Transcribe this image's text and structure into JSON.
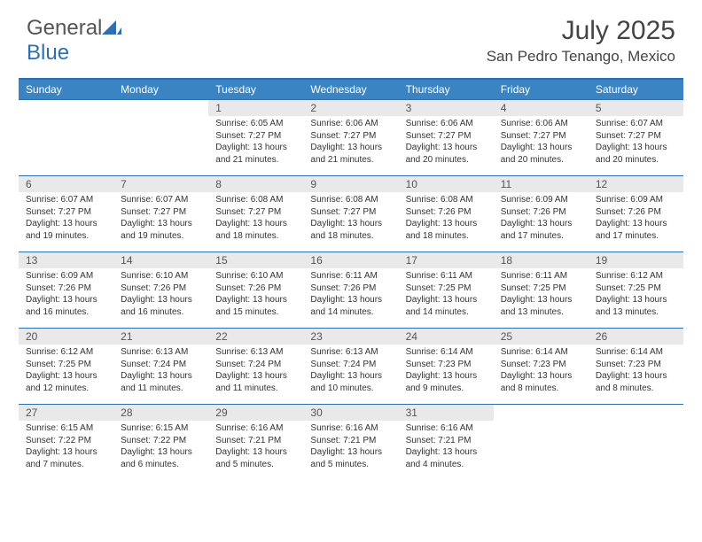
{
  "brand": {
    "part1": "General",
    "part2": "Blue"
  },
  "title": "July 2025",
  "location": "San Pedro Tenango, Mexico",
  "colors": {
    "header_bg": "#3b84c4",
    "header_border": "#2f6fb0",
    "daynum_bg": "#e9e9e9",
    "text": "#333333"
  },
  "weekdays": [
    "Sunday",
    "Monday",
    "Tuesday",
    "Wednesday",
    "Thursday",
    "Friday",
    "Saturday"
  ],
  "weeks": [
    [
      null,
      null,
      {
        "n": "1",
        "sr": "Sunrise: 6:05 AM",
        "ss": "Sunset: 7:27 PM",
        "dl": "Daylight: 13 hours and 21 minutes."
      },
      {
        "n": "2",
        "sr": "Sunrise: 6:06 AM",
        "ss": "Sunset: 7:27 PM",
        "dl": "Daylight: 13 hours and 21 minutes."
      },
      {
        "n": "3",
        "sr": "Sunrise: 6:06 AM",
        "ss": "Sunset: 7:27 PM",
        "dl": "Daylight: 13 hours and 20 minutes."
      },
      {
        "n": "4",
        "sr": "Sunrise: 6:06 AM",
        "ss": "Sunset: 7:27 PM",
        "dl": "Daylight: 13 hours and 20 minutes."
      },
      {
        "n": "5",
        "sr": "Sunrise: 6:07 AM",
        "ss": "Sunset: 7:27 PM",
        "dl": "Daylight: 13 hours and 20 minutes."
      }
    ],
    [
      {
        "n": "6",
        "sr": "Sunrise: 6:07 AM",
        "ss": "Sunset: 7:27 PM",
        "dl": "Daylight: 13 hours and 19 minutes."
      },
      {
        "n": "7",
        "sr": "Sunrise: 6:07 AM",
        "ss": "Sunset: 7:27 PM",
        "dl": "Daylight: 13 hours and 19 minutes."
      },
      {
        "n": "8",
        "sr": "Sunrise: 6:08 AM",
        "ss": "Sunset: 7:27 PM",
        "dl": "Daylight: 13 hours and 18 minutes."
      },
      {
        "n": "9",
        "sr": "Sunrise: 6:08 AM",
        "ss": "Sunset: 7:27 PM",
        "dl": "Daylight: 13 hours and 18 minutes."
      },
      {
        "n": "10",
        "sr": "Sunrise: 6:08 AM",
        "ss": "Sunset: 7:26 PM",
        "dl": "Daylight: 13 hours and 18 minutes."
      },
      {
        "n": "11",
        "sr": "Sunrise: 6:09 AM",
        "ss": "Sunset: 7:26 PM",
        "dl": "Daylight: 13 hours and 17 minutes."
      },
      {
        "n": "12",
        "sr": "Sunrise: 6:09 AM",
        "ss": "Sunset: 7:26 PM",
        "dl": "Daylight: 13 hours and 17 minutes."
      }
    ],
    [
      {
        "n": "13",
        "sr": "Sunrise: 6:09 AM",
        "ss": "Sunset: 7:26 PM",
        "dl": "Daylight: 13 hours and 16 minutes."
      },
      {
        "n": "14",
        "sr": "Sunrise: 6:10 AM",
        "ss": "Sunset: 7:26 PM",
        "dl": "Daylight: 13 hours and 16 minutes."
      },
      {
        "n": "15",
        "sr": "Sunrise: 6:10 AM",
        "ss": "Sunset: 7:26 PM",
        "dl": "Daylight: 13 hours and 15 minutes."
      },
      {
        "n": "16",
        "sr": "Sunrise: 6:11 AM",
        "ss": "Sunset: 7:26 PM",
        "dl": "Daylight: 13 hours and 14 minutes."
      },
      {
        "n": "17",
        "sr": "Sunrise: 6:11 AM",
        "ss": "Sunset: 7:25 PM",
        "dl": "Daylight: 13 hours and 14 minutes."
      },
      {
        "n": "18",
        "sr": "Sunrise: 6:11 AM",
        "ss": "Sunset: 7:25 PM",
        "dl": "Daylight: 13 hours and 13 minutes."
      },
      {
        "n": "19",
        "sr": "Sunrise: 6:12 AM",
        "ss": "Sunset: 7:25 PM",
        "dl": "Daylight: 13 hours and 13 minutes."
      }
    ],
    [
      {
        "n": "20",
        "sr": "Sunrise: 6:12 AM",
        "ss": "Sunset: 7:25 PM",
        "dl": "Daylight: 13 hours and 12 minutes."
      },
      {
        "n": "21",
        "sr": "Sunrise: 6:13 AM",
        "ss": "Sunset: 7:24 PM",
        "dl": "Daylight: 13 hours and 11 minutes."
      },
      {
        "n": "22",
        "sr": "Sunrise: 6:13 AM",
        "ss": "Sunset: 7:24 PM",
        "dl": "Daylight: 13 hours and 11 minutes."
      },
      {
        "n": "23",
        "sr": "Sunrise: 6:13 AM",
        "ss": "Sunset: 7:24 PM",
        "dl": "Daylight: 13 hours and 10 minutes."
      },
      {
        "n": "24",
        "sr": "Sunrise: 6:14 AM",
        "ss": "Sunset: 7:23 PM",
        "dl": "Daylight: 13 hours and 9 minutes."
      },
      {
        "n": "25",
        "sr": "Sunrise: 6:14 AM",
        "ss": "Sunset: 7:23 PM",
        "dl": "Daylight: 13 hours and 8 minutes."
      },
      {
        "n": "26",
        "sr": "Sunrise: 6:14 AM",
        "ss": "Sunset: 7:23 PM",
        "dl": "Daylight: 13 hours and 8 minutes."
      }
    ],
    [
      {
        "n": "27",
        "sr": "Sunrise: 6:15 AM",
        "ss": "Sunset: 7:22 PM",
        "dl": "Daylight: 13 hours and 7 minutes."
      },
      {
        "n": "28",
        "sr": "Sunrise: 6:15 AM",
        "ss": "Sunset: 7:22 PM",
        "dl": "Daylight: 13 hours and 6 minutes."
      },
      {
        "n": "29",
        "sr": "Sunrise: 6:16 AM",
        "ss": "Sunset: 7:21 PM",
        "dl": "Daylight: 13 hours and 5 minutes."
      },
      {
        "n": "30",
        "sr": "Sunrise: 6:16 AM",
        "ss": "Sunset: 7:21 PM",
        "dl": "Daylight: 13 hours and 5 minutes."
      },
      {
        "n": "31",
        "sr": "Sunrise: 6:16 AM",
        "ss": "Sunset: 7:21 PM",
        "dl": "Daylight: 13 hours and 4 minutes."
      },
      null,
      null
    ]
  ]
}
